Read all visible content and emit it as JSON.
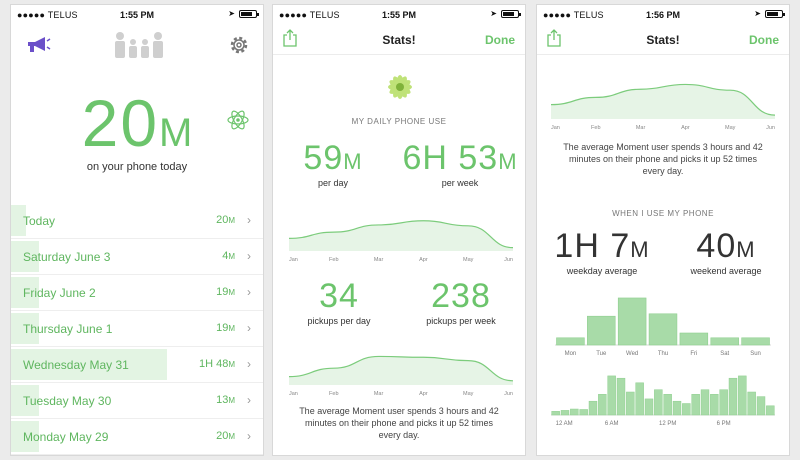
{
  "status": {
    "carrier": "●●●●● TELUS"
  },
  "colors": {
    "accent": "#6cc46c",
    "bar_fill": "#a8dba8"
  },
  "screen1": {
    "time": "1:55 PM",
    "total_value": "20",
    "total_unit": "M",
    "total_label": "on your phone today",
    "icons": [
      "megaphone-icon",
      "family-icon",
      "gear-icon",
      "atom-icon"
    ],
    "days": [
      {
        "name": "Today",
        "value": "20",
        "unit": "M",
        "fraction": 0.06
      },
      {
        "name": "Saturday June 3",
        "value": "4",
        "unit": "M",
        "fraction": 0.11
      },
      {
        "name": "Friday June 2",
        "value": "19",
        "unit": "M",
        "fraction": 0.11
      },
      {
        "name": "Thursday June 1",
        "value": "19",
        "unit": "M",
        "fraction": 0.11
      },
      {
        "name": "Wednesday May 31",
        "value": "1H 48",
        "unit": "M",
        "fraction": 0.62
      },
      {
        "name": "Tuesday May 30",
        "value": "13",
        "unit": "M",
        "fraction": 0.11
      },
      {
        "name": "Monday May 29",
        "value": "20",
        "unit": "M",
        "fraction": 0.11
      }
    ]
  },
  "screen2": {
    "time": "1:55 PM",
    "title": "Stats!",
    "done": "Done",
    "section_label": "MY DAILY PHONE USE",
    "per_day_value": "59",
    "per_day_unit": "M",
    "per_day_label": "per day",
    "per_week_value": "6H 53",
    "per_week_unit": "M",
    "per_week_label": "per week",
    "pickups_day_value": "34",
    "pickups_day_label": "pickups per day",
    "pickups_week_value": "238",
    "pickups_week_label": "pickups per week",
    "average_text": "The average Moment user spends 3 hours and 42 minutes on their phone and picks it up 52 times every day."
  },
  "screen3": {
    "time": "1:56 PM",
    "title": "Stats!",
    "done": "Done",
    "average_text": "The average Moment user spends 3 hours and 42 minutes on their phone and picks it up 52 times every day.",
    "section_label": "WHEN I USE MY PHONE",
    "weekday_value": "1H 7",
    "weekday_unit": "M",
    "weekday_label": "weekday average",
    "weekend_value": "40",
    "weekend_unit": "M",
    "weekend_label": "weekend average"
  },
  "chart_data": [
    {
      "type": "area",
      "categories": [
        "Jan",
        "Feb",
        "Mar",
        "Apr",
        "May",
        "Jun"
      ],
      "values": [
        30,
        45,
        62,
        72,
        60,
        8
      ],
      "ylim": [
        0,
        100
      ]
    },
    {
      "type": "area",
      "categories": [
        "Jan",
        "Feb",
        "Mar",
        "Apr",
        "May",
        "Jun"
      ],
      "values": [
        20,
        40,
        68,
        66,
        58,
        10
      ],
      "ylim": [
        0,
        100
      ]
    },
    {
      "type": "area",
      "categories": [
        "Jan",
        "Feb",
        "Mar",
        "Apr",
        "May",
        "Jun"
      ],
      "values": [
        30,
        45,
        62,
        72,
        60,
        8
      ],
      "ylim": [
        0,
        100
      ]
    },
    {
      "type": "bar",
      "categories": [
        "Mon",
        "Tue",
        "Wed",
        "Thu",
        "Fri",
        "Sat",
        "Sun"
      ],
      "values": [
        15,
        60,
        98,
        65,
        25,
        15,
        15
      ],
      "ylim": [
        0,
        100
      ]
    },
    {
      "type": "bar",
      "tick_labels": [
        "12 AM",
        "6 AM",
        "12 PM",
        "6 PM"
      ],
      "values": [
        8,
        10,
        13,
        12,
        30,
        45,
        85,
        80,
        50,
        70,
        35,
        55,
        45,
        30,
        25,
        45,
        55,
        45,
        55,
        80,
        85,
        50,
        40,
        20
      ],
      "ylim": [
        0,
        100
      ]
    }
  ]
}
